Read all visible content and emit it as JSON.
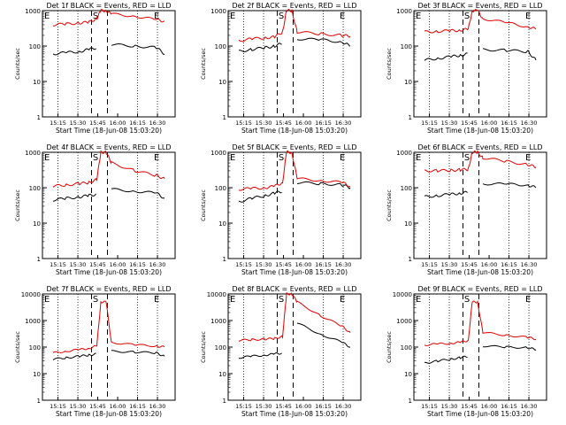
{
  "figure": {
    "ylabel": "Counts/sec",
    "xlabel": "Start Time (18-Jun-08 15:03:20)",
    "yticks": [
      "1",
      "10",
      "100",
      "1000"
    ],
    "xticks": [
      "15:15",
      "15:30",
      "15:45",
      "16:00",
      "16:15",
      "16:30"
    ],
    "markers": {
      "e1": "E",
      "s": "S",
      "e2": "E"
    },
    "colors": {
      "events": "#000000",
      "lld": "#e00000"
    }
  },
  "chart_data": [
    {
      "type": "line",
      "title": "Det 1f BLACK = Events, RED = LLD",
      "xlabel": "Start Time (18-Jun-08 15:03:20)",
      "ylabel": "Counts/sec",
      "ylim": [
        1,
        1000
      ],
      "yscale": "log",
      "x_minutes": [
        8,
        18,
        28,
        35,
        41,
        44,
        48,
        52,
        70,
        86,
        92
      ],
      "series": [
        {
          "name": "Events",
          "values": [
            60,
            65,
            70,
            80,
            90,
            null,
            null,
            110,
            100,
            90,
            60
          ]
        },
        {
          "name": "LLD",
          "values": [
            400,
            420,
            450,
            470,
            600,
            1000,
            1000,
            800,
            700,
            550,
            500
          ]
        }
      ]
    },
    {
      "type": "line",
      "title": "Det 2f BLACK = Events, RED = LLD",
      "xlabel": "Start Time (18-Jun-08 15:03:20)",
      "ylabel": "Counts/sec",
      "ylim": [
        1,
        1000
      ],
      "yscale": "log",
      "x_minutes": [
        8,
        18,
        28,
        35,
        41,
        44,
        48,
        52,
        70,
        86,
        92
      ],
      "series": [
        {
          "name": "Events",
          "values": [
            70,
            80,
            90,
            100,
            120,
            null,
            null,
            160,
            150,
            130,
            100
          ]
        },
        {
          "name": "LLD",
          "values": [
            140,
            160,
            170,
            180,
            250,
            1000,
            1000,
            250,
            220,
            200,
            190
          ]
        }
      ]
    },
    {
      "type": "line",
      "title": "Det 3f BLACK = Events, RED = LLD",
      "xlabel": "Start Time (18-Jun-08 15:03:20)",
      "ylabel": "Counts/sec",
      "ylim": [
        1,
        1000
      ],
      "yscale": "log",
      "x_minutes": [
        8,
        18,
        28,
        35,
        41,
        44,
        48,
        52,
        70,
        86,
        92
      ],
      "series": [
        {
          "name": "Events",
          "values": [
            40,
            45,
            50,
            55,
            60,
            null,
            null,
            80,
            75,
            70,
            40
          ]
        },
        {
          "name": "LLD",
          "values": [
            250,
            260,
            270,
            280,
            300,
            1000,
            1000,
            600,
            450,
            350,
            300
          ]
        }
      ]
    },
    {
      "type": "line",
      "title": "Det 4f BLACK = Events, RED = LLD",
      "xlabel": "Start Time (18-Jun-08 15:03:20)",
      "ylabel": "Counts/sec",
      "ylim": [
        1,
        1000
      ],
      "yscale": "log",
      "x_minutes": [
        8,
        18,
        28,
        35,
        41,
        44,
        48,
        52,
        70,
        86,
        92
      ],
      "series": [
        {
          "name": "Events",
          "values": [
            45,
            50,
            55,
            60,
            65,
            null,
            null,
            90,
            80,
            70,
            50
          ]
        },
        {
          "name": "LLD",
          "values": [
            110,
            120,
            130,
            140,
            170,
            1000,
            1000,
            500,
            300,
            220,
            180
          ]
        }
      ]
    },
    {
      "type": "line",
      "title": "Det 5f BLACK = Events, RED = LLD",
      "xlabel": "Start Time (18-Jun-08 15:03:20)",
      "ylabel": "Counts/sec",
      "ylim": [
        1,
        1000
      ],
      "yscale": "log",
      "x_minutes": [
        8,
        18,
        28,
        35,
        41,
        44,
        48,
        52,
        70,
        86,
        92
      ],
      "series": [
        {
          "name": "Events",
          "values": [
            40,
            50,
            60,
            70,
            80,
            null,
            null,
            140,
            130,
            120,
            100
          ]
        },
        {
          "name": "LLD",
          "values": [
            90,
            95,
            100,
            110,
            140,
            1000,
            1000,
            180,
            160,
            140,
            110
          ]
        }
      ]
    },
    {
      "type": "line",
      "title": "Det 6f BLACK = Events, RED = LLD",
      "xlabel": "Start Time (18-Jun-08 15:03:20)",
      "ylabel": "Counts/sec",
      "ylim": [
        1,
        1000
      ],
      "yscale": "log",
      "x_minutes": [
        8,
        18,
        28,
        35,
        41,
        44,
        48,
        52,
        70,
        86,
        92
      ],
      "series": [
        {
          "name": "Events",
          "values": [
            55,
            60,
            65,
            70,
            75,
            null,
            null,
            130,
            125,
            120,
            100
          ]
        },
        {
          "name": "LLD",
          "values": [
            300,
            300,
            310,
            320,
            330,
            1000,
            1000,
            700,
            550,
            450,
            380
          ]
        }
      ]
    },
    {
      "type": "line",
      "title": "Det 7f BLACK = Events, RED = LLD",
      "xlabel": "Start Time (18-Jun-08 15:03:20)",
      "ylabel": "Counts/sec",
      "ylim": [
        1,
        10000
      ],
      "yscale": "log",
      "x_minutes": [
        8,
        18,
        28,
        35,
        41,
        44,
        48,
        52,
        70,
        86,
        92
      ],
      "series": [
        {
          "name": "Events",
          "values": [
            35,
            40,
            45,
            50,
            55,
            null,
            null,
            70,
            65,
            60,
            45
          ]
        },
        {
          "name": "LLD",
          "values": [
            60,
            70,
            80,
            90,
            110,
            5000,
            5000,
            150,
            120,
            110,
            100
          ]
        }
      ]
    },
    {
      "type": "line",
      "title": "Det 8f BLACK = Events, RED = LLD",
      "xlabel": "Start Time (18-Jun-08 15:03:20)",
      "ylabel": "Counts/sec",
      "ylim": [
        1,
        10000
      ],
      "yscale": "log",
      "x_minutes": [
        8,
        18,
        28,
        35,
        41,
        44,
        48,
        52,
        70,
        86,
        92
      ],
      "series": [
        {
          "name": "Events",
          "values": [
            40,
            45,
            50,
            55,
            60,
            null,
            null,
            800,
            300,
            150,
            100
          ]
        },
        {
          "name": "LLD",
          "values": [
            180,
            190,
            200,
            210,
            250,
            10000,
            10000,
            5000,
            1500,
            600,
            350
          ]
        }
      ]
    },
    {
      "type": "line",
      "title": "Det 9f BLACK = Events, RED = LLD",
      "xlabel": "Start Time (18-Jun-08 15:03:20)",
      "ylabel": "Counts/sec",
      "ylim": [
        1,
        10000
      ],
      "yscale": "log",
      "x_minutes": [
        8,
        18,
        28,
        35,
        41,
        44,
        48,
        52,
        70,
        86,
        92
      ],
      "series": [
        {
          "name": "Events",
          "values": [
            25,
            30,
            35,
            40,
            45,
            null,
            null,
            110,
            100,
            95,
            80
          ]
        },
        {
          "name": "LLD",
          "values": [
            120,
            130,
            140,
            150,
            180,
            5000,
            5000,
            350,
            280,
            230,
            200
          ]
        }
      ]
    }
  ]
}
